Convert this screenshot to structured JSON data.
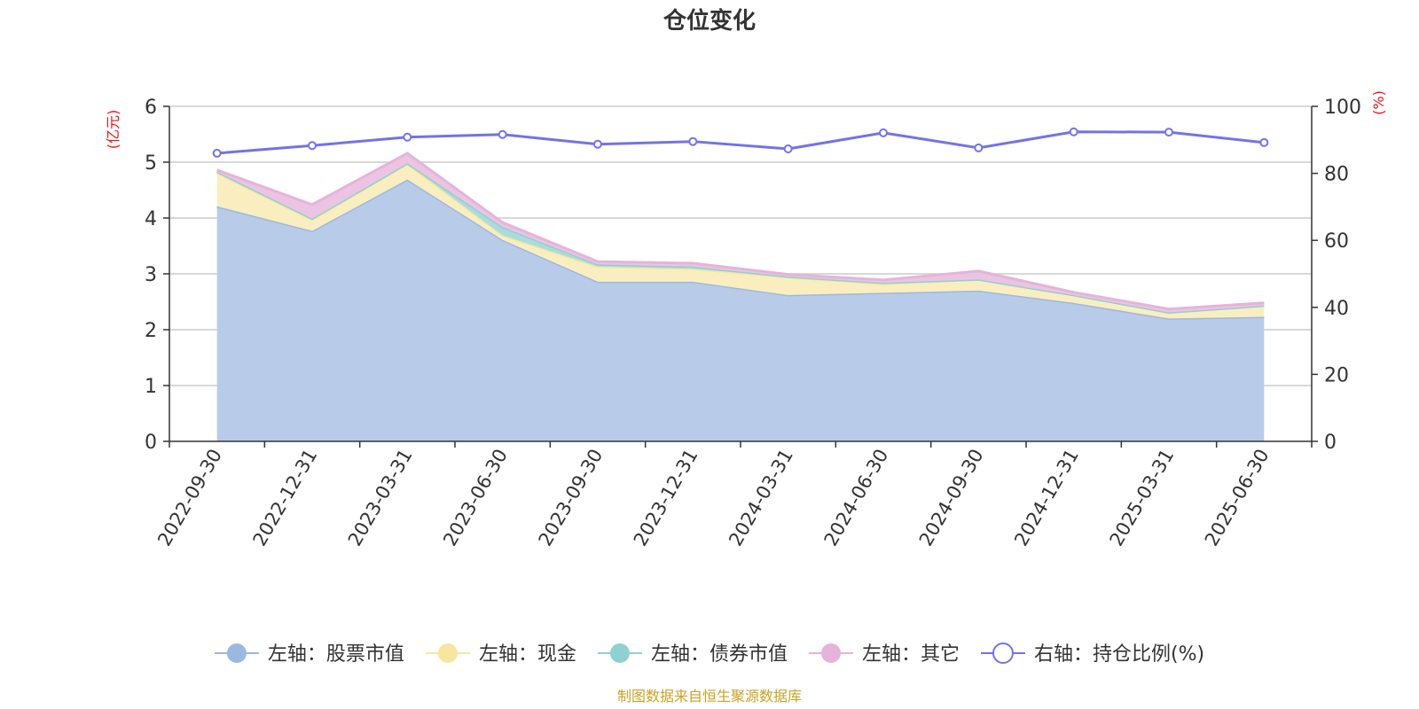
{
  "chart_data": {
    "type": "area",
    "title": "仓位变化",
    "left_axis_unit": "(亿元)",
    "right_axis_unit": "(%)",
    "categories": [
      "2022-09-30",
      "2022-12-31",
      "2023-03-31",
      "2023-06-30",
      "2023-09-30",
      "2023-12-31",
      "2024-03-31",
      "2024-06-30",
      "2024-09-30",
      "2024-12-31",
      "2025-03-31",
      "2025-06-30"
    ],
    "left_ylim": [
      0,
      6
    ],
    "left_yticks": [
      0,
      1,
      2,
      3,
      4,
      5,
      6
    ],
    "right_ylim": [
      0,
      100
    ],
    "right_yticks": [
      0,
      20,
      40,
      60,
      80,
      100
    ],
    "grid": true,
    "legend_position": "bottom",
    "stacked_series": [
      {
        "name": "左轴：股票市值",
        "color": "#9db8e0",
        "fill": "#b8cce9",
        "values": [
          4.21,
          3.77,
          4.69,
          3.61,
          2.86,
          2.86,
          2.62,
          2.66,
          2.7,
          2.48,
          2.2,
          2.23
        ]
      },
      {
        "name": "左轴：现金",
        "color": "#f7e6a0",
        "fill": "#faeec0",
        "values": [
          0.6,
          0.2,
          0.28,
          0.08,
          0.27,
          0.23,
          0.32,
          0.16,
          0.2,
          0.14,
          0.11,
          0.2
        ]
      },
      {
        "name": "左轴：债券市值",
        "color": "#8fd1d1",
        "fill": "#a9dcdc",
        "values": [
          0.02,
          0.02,
          0.01,
          0.15,
          0.04,
          0.04,
          0.01,
          0.02,
          0.0,
          0.0,
          0.0,
          0.0
        ]
      },
      {
        "name": "左轴：其它",
        "color": "#e6b3da",
        "fill": "#ecc4e3",
        "values": [
          0.03,
          0.25,
          0.18,
          0.08,
          0.05,
          0.06,
          0.04,
          0.05,
          0.15,
          0.05,
          0.06,
          0.05
        ]
      }
    ],
    "line_series": {
      "name": "右轴：持仓比例(%)",
      "color": "#7373e8",
      "values": [
        86.0,
        88.3,
        90.8,
        91.6,
        88.7,
        89.5,
        87.3,
        92.1,
        87.6,
        92.4,
        92.3,
        89.2
      ]
    }
  },
  "source_text": "制图数据来自恒生聚源数据库"
}
